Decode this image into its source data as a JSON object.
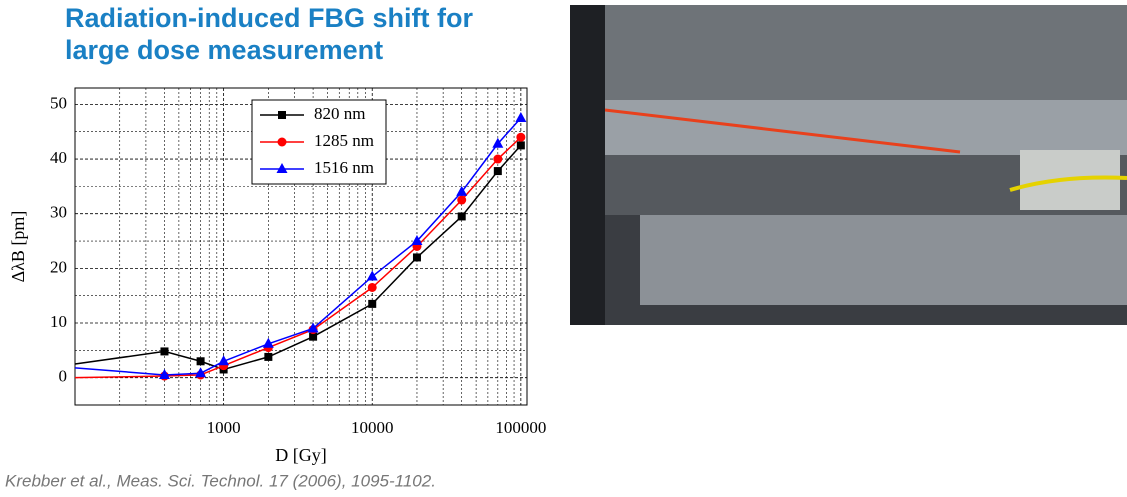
{
  "header": {
    "title_lines": [
      "Radiation-induced FBG shift for",
      "large dose measurement"
    ]
  },
  "citation": "Krebber et al., Meas. Sci. Technol. 17 (2006), 1095-1102.",
  "chart_data": {
    "type": "line",
    "x_label": "D [Gy]",
    "y_label": "ΔλB [pm]",
    "x": [
      100,
      400,
      700,
      1000,
      2000,
      4000,
      10000,
      20000,
      40000,
      70000,
      100000
    ],
    "series": [
      {
        "name": "820 nm",
        "color": "#000000",
        "marker": "square",
        "values": [
          2.5,
          4.8,
          3.0,
          1.5,
          3.8,
          7.5,
          13.5,
          22,
          29.5,
          37.8,
          42.5
        ]
      },
      {
        "name": "1285 nm",
        "color": "#ff0000",
        "marker": "circle",
        "values": [
          0,
          0.3,
          0.5,
          2.2,
          5.5,
          8.8,
          16.5,
          24,
          32.5,
          40,
          44
        ]
      },
      {
        "name": "1516 nm",
        "color": "#0000ff",
        "marker": "triangle",
        "values": [
          1.8,
          0.5,
          0.8,
          3,
          6.2,
          9,
          18.5,
          25,
          34,
          42.8,
          47.5
        ]
      }
    ],
    "xlim": [
      100,
      110000
    ],
    "xticks": [
      1000,
      10000,
      100000
    ],
    "xscale": "log",
    "ylim": [
      -5,
      53
    ],
    "yticks": [
      0,
      10,
      20,
      30,
      40,
      50
    ],
    "grid": true,
    "legend": "upper center"
  }
}
